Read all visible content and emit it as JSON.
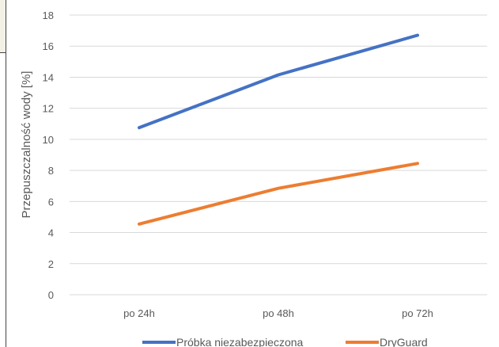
{
  "chart_data": {
    "type": "line",
    "categories": [
      "po 24h",
      "po 48h",
      "po 72h"
    ],
    "series": [
      {
        "name": "Próbka niezabezpieczona",
        "values": [
          10.75,
          14.15,
          16.7
        ],
        "color": "#4472c4"
      },
      {
        "name": "DryGuard",
        "values": [
          4.55,
          6.85,
          8.45
        ],
        "color": "#ed7d31"
      }
    ],
    "title": "",
    "xlabel": "",
    "ylabel": "Przepuszczalność wody [%]",
    "ylim": [
      0,
      18
    ],
    "yticks": [
      0,
      2,
      4,
      6,
      8,
      10,
      12,
      14,
      16,
      18
    ],
    "grid": true,
    "legend_position": "bottom",
    "gridline_color": "#d9d9d9"
  }
}
